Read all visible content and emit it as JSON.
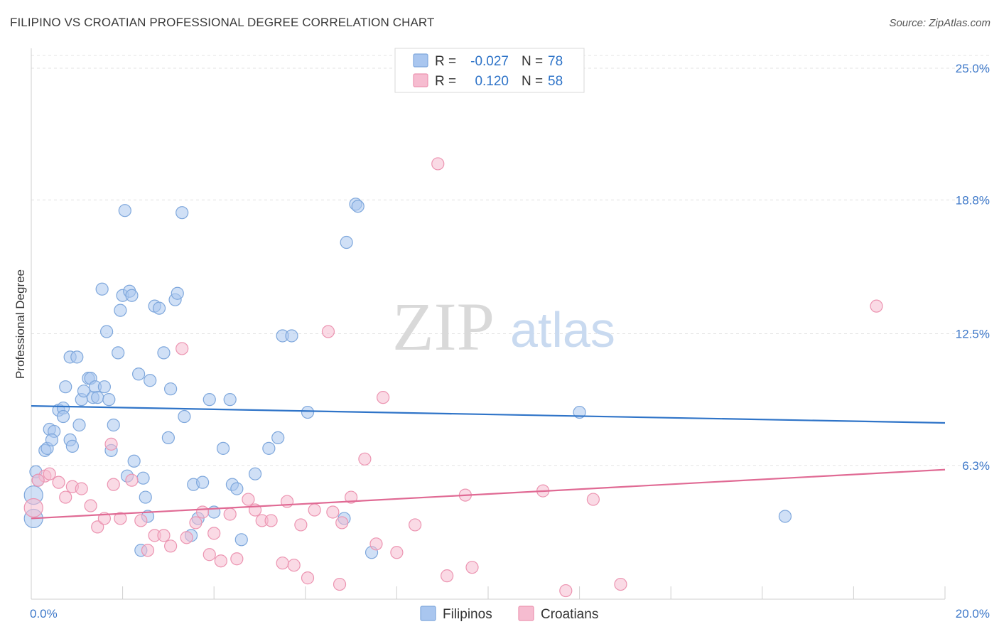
{
  "title": "FILIPINO VS CROATIAN PROFESSIONAL DEGREE CORRELATION CHART",
  "source": "Source: ZipAtlas.com",
  "watermark": {
    "zip": "ZIP",
    "atlas": "atlas"
  },
  "colors": {
    "filipino_fill": "#a9c6ef",
    "filipino_stroke": "#7ea7dc",
    "filipino_line": "#2f74c8",
    "croatian_fill": "#f6bcd0",
    "croatian_stroke": "#ec94b1",
    "croatian_line": "#e06a94",
    "tick_text": "#3d78c9"
  },
  "legend": {
    "rows": [
      {
        "r_label": "R =",
        "r_value": "-0.027",
        "n_label": "N =",
        "n_value": "78"
      },
      {
        "r_label": "R =",
        "r_value": "0.120",
        "n_label": "N =",
        "n_value": "58"
      }
    ]
  },
  "chart_data": {
    "type": "scatter",
    "ylabel": "Professional Degree",
    "xlim": [
      0,
      20
    ],
    "ylim": [
      0,
      25
    ],
    "x_tick_labels": [
      "0.0%",
      "20.0%"
    ],
    "y_ticks": [
      6.3,
      12.5,
      18.8,
      25.0
    ],
    "y_tick_labels": [
      "6.3%",
      "12.5%",
      "18.8%",
      "25.0%"
    ],
    "grid": "horizontal dashed",
    "legend_position": "top-center",
    "series": [
      {
        "name": "Filipinos",
        "r": -0.027,
        "n": 78,
        "trend": {
          "x": [
            0,
            20
          ],
          "y": [
            9.1,
            8.3
          ]
        },
        "points": [
          [
            0.1,
            6.0
          ],
          [
            0.15,
            5.6
          ],
          [
            0.3,
            7.0
          ],
          [
            0.35,
            7.1
          ],
          [
            0.4,
            8.0
          ],
          [
            0.5,
            7.9
          ],
          [
            0.45,
            7.5
          ],
          [
            0.6,
            8.9
          ],
          [
            0.7,
            9.0
          ],
          [
            0.7,
            8.6
          ],
          [
            0.75,
            10.0
          ],
          [
            0.85,
            7.5
          ],
          [
            0.9,
            7.2
          ],
          [
            0.85,
            11.4
          ],
          [
            1.0,
            11.4
          ],
          [
            1.05,
            8.2
          ],
          [
            1.1,
            9.4
          ],
          [
            1.15,
            9.8
          ],
          [
            1.25,
            10.4
          ],
          [
            1.3,
            10.4
          ],
          [
            1.35,
            9.5
          ],
          [
            1.4,
            10.0
          ],
          [
            1.45,
            9.5
          ],
          [
            1.55,
            14.6
          ],
          [
            1.6,
            10.0
          ],
          [
            1.65,
            12.6
          ],
          [
            1.7,
            9.4
          ],
          [
            1.75,
            7.0
          ],
          [
            1.8,
            8.2
          ],
          [
            1.9,
            11.6
          ],
          [
            1.95,
            13.6
          ],
          [
            2.0,
            14.3
          ],
          [
            2.05,
            18.3
          ],
          [
            2.1,
            5.8
          ],
          [
            2.15,
            14.5
          ],
          [
            2.2,
            14.3
          ],
          [
            2.25,
            6.5
          ],
          [
            2.35,
            10.6
          ],
          [
            2.4,
            2.3
          ],
          [
            2.45,
            5.7
          ],
          [
            2.5,
            4.8
          ],
          [
            2.55,
            3.9
          ],
          [
            2.6,
            10.3
          ],
          [
            2.7,
            13.8
          ],
          [
            2.8,
            13.7
          ],
          [
            2.9,
            11.6
          ],
          [
            3.0,
            7.6
          ],
          [
            3.05,
            9.9
          ],
          [
            3.15,
            14.1
          ],
          [
            3.2,
            14.4
          ],
          [
            3.3,
            18.2
          ],
          [
            3.35,
            8.6
          ],
          [
            3.5,
            3.0
          ],
          [
            3.55,
            5.4
          ],
          [
            3.65,
            3.8
          ],
          [
            3.75,
            5.5
          ],
          [
            3.9,
            9.4
          ],
          [
            4.0,
            4.1
          ],
          [
            4.2,
            7.1
          ],
          [
            4.35,
            9.4
          ],
          [
            4.4,
            5.4
          ],
          [
            4.5,
            5.2
          ],
          [
            4.6,
            2.8
          ],
          [
            4.9,
            5.9
          ],
          [
            5.2,
            7.1
          ],
          [
            5.4,
            7.6
          ],
          [
            5.5,
            12.4
          ],
          [
            5.7,
            12.4
          ],
          [
            6.05,
            8.8
          ],
          [
            6.85,
            3.8
          ],
          [
            6.9,
            16.8
          ],
          [
            7.1,
            18.6
          ],
          [
            7.15,
            18.5
          ],
          [
            7.45,
            2.2
          ],
          [
            12.0,
            8.8
          ],
          [
            16.5,
            3.9
          ],
          [
            0.05,
            4.9
          ],
          [
            0.05,
            3.8
          ]
        ]
      },
      {
        "name": "Croatians",
        "r": 0.12,
        "n": 58,
        "trend": {
          "x": [
            0,
            20
          ],
          "y": [
            3.8,
            6.1
          ]
        },
        "points": [
          [
            0.05,
            4.3
          ],
          [
            0.3,
            5.8
          ],
          [
            0.4,
            5.9
          ],
          [
            0.6,
            5.5
          ],
          [
            0.75,
            4.8
          ],
          [
            0.9,
            5.3
          ],
          [
            1.1,
            5.2
          ],
          [
            1.3,
            4.4
          ],
          [
            1.45,
            3.4
          ],
          [
            1.6,
            3.8
          ],
          [
            1.75,
            7.3
          ],
          [
            1.8,
            5.4
          ],
          [
            1.95,
            3.8
          ],
          [
            2.2,
            5.6
          ],
          [
            2.4,
            3.7
          ],
          [
            2.55,
            2.3
          ],
          [
            2.7,
            3.0
          ],
          [
            2.9,
            3.0
          ],
          [
            3.05,
            2.5
          ],
          [
            3.3,
            11.8
          ],
          [
            3.4,
            2.9
          ],
          [
            3.6,
            3.6
          ],
          [
            3.75,
            4.1
          ],
          [
            3.9,
            2.1
          ],
          [
            4.0,
            3.1
          ],
          [
            4.15,
            1.8
          ],
          [
            4.35,
            4.0
          ],
          [
            4.5,
            1.9
          ],
          [
            4.75,
            4.7
          ],
          [
            4.9,
            4.2
          ],
          [
            5.05,
            3.7
          ],
          [
            5.25,
            3.7
          ],
          [
            5.5,
            1.7
          ],
          [
            5.6,
            4.6
          ],
          [
            5.75,
            1.6
          ],
          [
            5.9,
            3.5
          ],
          [
            6.05,
            1.0
          ],
          [
            6.2,
            4.2
          ],
          [
            6.5,
            12.6
          ],
          [
            6.6,
            4.1
          ],
          [
            6.75,
            0.7
          ],
          [
            6.8,
            3.6
          ],
          [
            7.0,
            4.8
          ],
          [
            7.3,
            6.6
          ],
          [
            7.55,
            2.6
          ],
          [
            7.7,
            9.5
          ],
          [
            8.0,
            2.2
          ],
          [
            8.4,
            3.5
          ],
          [
            8.9,
            20.5
          ],
          [
            9.1,
            1.1
          ],
          [
            9.5,
            4.9
          ],
          [
            9.65,
            1.5
          ],
          [
            11.2,
            5.1
          ],
          [
            11.7,
            0.4
          ],
          [
            12.3,
            4.7
          ],
          [
            12.9,
            0.7
          ],
          [
            18.5,
            13.8
          ],
          [
            0.15,
            5.6
          ]
        ]
      }
    ]
  }
}
